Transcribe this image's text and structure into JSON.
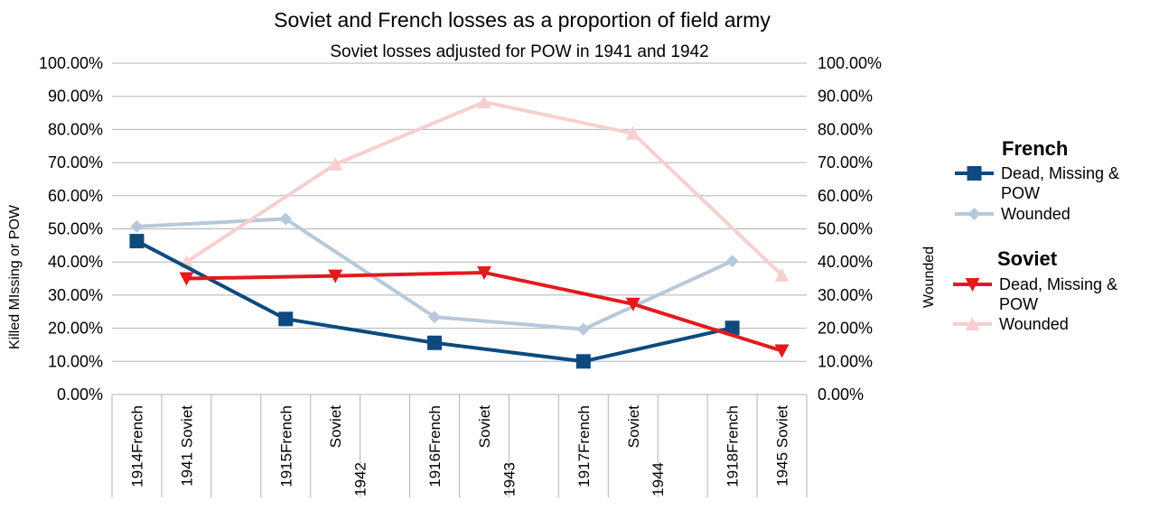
{
  "chart_data": {
    "type": "line",
    "title": "Soviet and French losses as a proportion of field army",
    "subtitle": "Soviet losses adjusted for POW in 1941 and 1942",
    "ylabel_left": "Killed MIssing or POW",
    "ylabel_right": "Wounded",
    "ylim": [
      0,
      1
    ],
    "yticks": [
      "0.00%",
      "10.00%",
      "20.00%",
      "30.00%",
      "40.00%",
      "50.00%",
      "60.00%",
      "70.00%",
      "80.00%",
      "90.00%",
      "100.00%"
    ],
    "categories": [
      {
        "top": "1914",
        "bottom": "French"
      },
      {
        "top": "1941",
        "bottom": "Soviet"
      },
      {
        "top": "",
        "bottom": ""
      },
      {
        "top": "1915",
        "bottom": "French"
      },
      {
        "top": "Soviet",
        "bottom": "1942"
      },
      {
        "top": "",
        "bottom": ""
      },
      {
        "top": "1916",
        "bottom": "French"
      },
      {
        "top": "Soviet",
        "bottom": "1943"
      },
      {
        "top": "",
        "bottom": ""
      },
      {
        "top": "1917",
        "bottom": "French"
      },
      {
        "top": "Soviet",
        "bottom": "1944"
      },
      {
        "top": "",
        "bottom": ""
      },
      {
        "top": "1918",
        "bottom": "French"
      },
      {
        "top": "1945",
        "bottom": "Soviet"
      }
    ],
    "category_labels": [
      [
        "1914French",
        "1941  Soviet"
      ],
      [
        "1915French",
        "Soviet",
        "1942"
      ],
      [
        "1916French",
        "Soviet",
        "1943"
      ],
      [
        "1917French",
        "Soviet",
        "1944"
      ],
      [
        "1918French",
        "1945  Soviet"
      ]
    ],
    "series": [
      {
        "name": "French Dead, Missing & POW",
        "group": "French",
        "label": "Dead, Missing & POW",
        "color": "#0d4a7f",
        "marker": "square",
        "points": [
          [
            0,
            0.463
          ],
          [
            3,
            0.228
          ],
          [
            6,
            0.156
          ],
          [
            9,
            0.1
          ],
          [
            12,
            0.201
          ]
        ]
      },
      {
        "name": "French Wounded",
        "group": "French",
        "label": "Wounded",
        "color": "#b7c8da",
        "marker": "diamond",
        "points": [
          [
            0,
            0.507
          ],
          [
            3,
            0.53
          ],
          [
            6,
            0.234
          ],
          [
            9,
            0.197
          ],
          [
            12,
            0.403
          ]
        ]
      },
      {
        "name": "Soviet Dead, Missing & POW",
        "group": "Soviet",
        "label": "Dead, Missing & POW",
        "color": "#e31a1c",
        "marker": "triangle-down",
        "points": [
          [
            1,
            0.35
          ],
          [
            4,
            0.358
          ],
          [
            7,
            0.368
          ],
          [
            10,
            0.273
          ],
          [
            13,
            0.132
          ]
        ]
      },
      {
        "name": "Soviet Wounded",
        "group": "Soviet",
        "label": "Wounded",
        "color": "#f8cfcf",
        "marker": "triangle-up",
        "points": [
          [
            1,
            0.4
          ],
          [
            4,
            0.695
          ],
          [
            7,
            0.883
          ],
          [
            10,
            0.788
          ],
          [
            13,
            0.36
          ]
        ]
      }
    ],
    "legend": {
      "position": "right",
      "groups": [
        {
          "title": "French",
          "items": [
            {
              "label_lines": [
                "Dead, Missing &",
                "POW"
              ],
              "color": "#0d4a7f",
              "marker": "square"
            },
            {
              "label_lines": [
                "Wounded"
              ],
              "color": "#b7c8da",
              "marker": "diamond"
            }
          ]
        },
        {
          "title": "Soviet",
          "items": [
            {
              "label_lines": [
                "Dead, Missing &",
                "POW"
              ],
              "color": "#e31a1c",
              "marker": "triangle-down"
            },
            {
              "label_lines": [
                "Wounded"
              ],
              "color": "#f8cfcf",
              "marker": "triangle-up"
            }
          ]
        }
      ]
    }
  }
}
